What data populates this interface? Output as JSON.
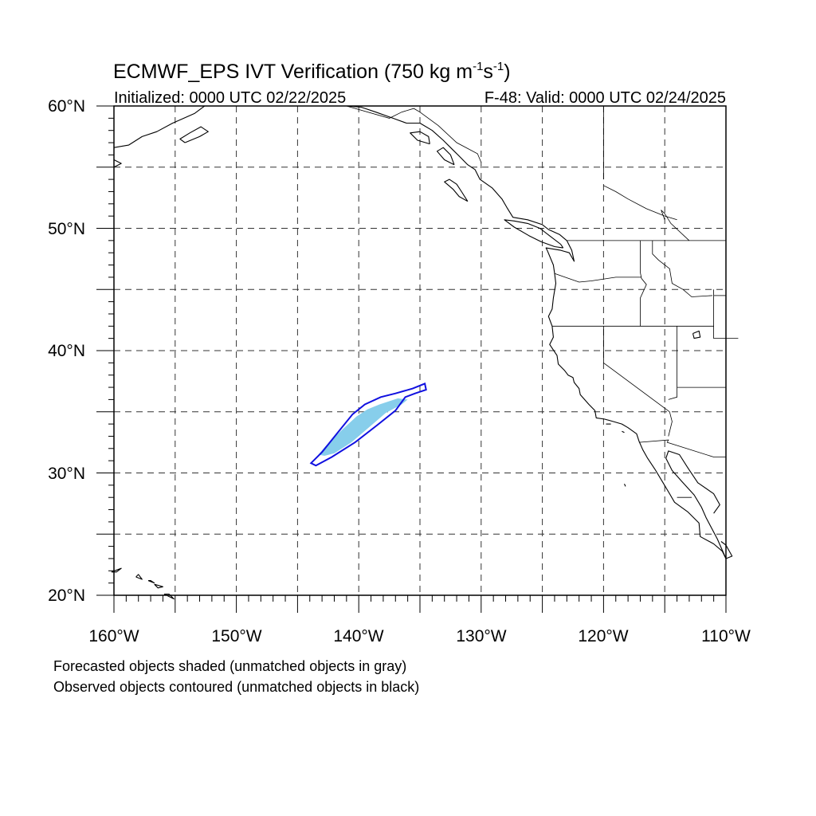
{
  "title": {
    "main": "ECMWF_EPS IVT Verification (750 kg m",
    "sup1": "-1",
    "mid": "s",
    "sup2": "-1",
    "end": ")"
  },
  "subtitle_left": "Initialized: 0000 UTC 02/22/2025",
  "subtitle_right": "F-48: Valid: 0000 UTC 02/24/2025",
  "lat_labels": [
    "20°N",
    "30°N",
    "40°N",
    "50°N",
    "60°N"
  ],
  "lon_labels": [
    "160°W",
    "150°W",
    "140°W",
    "130°W",
    "120°W",
    "110°W"
  ],
  "notes": {
    "forecast": "Forecasted objects shaded (unmatched objects in gray)",
    "observed": "Observed objects contoured (unmatched objects in black)"
  },
  "map": {
    "extent": {
      "lon": [
        -160,
        -110
      ],
      "lat": [
        20,
        60
      ]
    },
    "gridlines_dashed": true,
    "forecast_object": {
      "fill": "#87ceeb",
      "outline": [
        [
          -143.3,
          31.5
        ],
        [
          -142.7,
          32.2
        ],
        [
          -141.5,
          33.4
        ],
        [
          -140.2,
          34.6
        ],
        [
          -139.3,
          35.2
        ],
        [
          -138.3,
          35.6
        ],
        [
          -136.8,
          36.1
        ],
        [
          -136.0,
          36.0
        ],
        [
          -136.5,
          35.6
        ],
        [
          -137.8,
          34.9
        ],
        [
          -139.2,
          33.7
        ],
        [
          -140.6,
          32.5
        ],
        [
          -142.0,
          31.6
        ],
        [
          -142.8,
          31.4
        ]
      ]
    },
    "observed_object": {
      "stroke": "#1010e0",
      "outline": [
        [
          -143.9,
          30.8
        ],
        [
          -143.0,
          31.7
        ],
        [
          -141.8,
          33.2
        ],
        [
          -140.5,
          34.8
        ],
        [
          -139.5,
          35.6
        ],
        [
          -138.2,
          36.2
        ],
        [
          -137.0,
          36.5
        ],
        [
          -135.6,
          36.9
        ],
        [
          -134.6,
          37.3
        ],
        [
          -134.5,
          36.8
        ],
        [
          -135.4,
          36.5
        ],
        [
          -136.2,
          36.2
        ],
        [
          -137.0,
          35.1
        ],
        [
          -138.5,
          33.9
        ],
        [
          -140.3,
          32.5
        ],
        [
          -142.2,
          31.3
        ],
        [
          -143.5,
          30.6
        ]
      ]
    }
  }
}
